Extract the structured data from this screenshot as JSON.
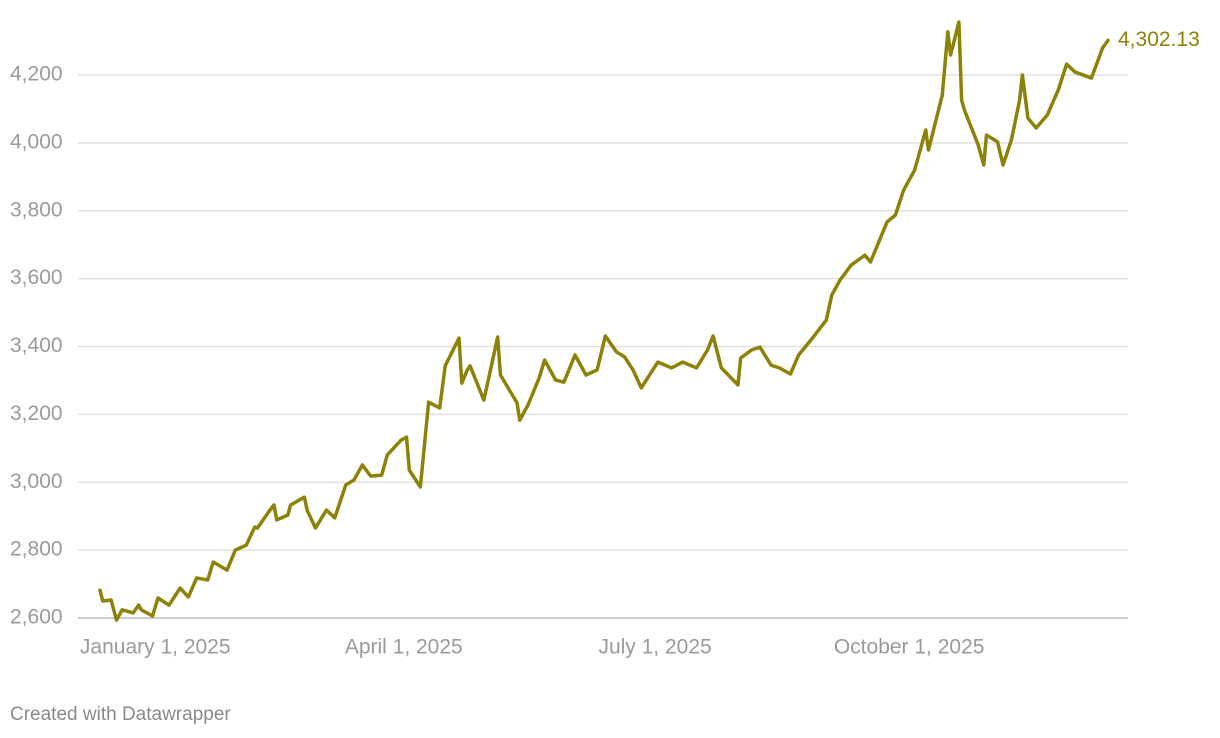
{
  "chart_data": {
    "type": "line",
    "x": [
      "2024-12-12",
      "2024-12-13",
      "2024-12-16",
      "2024-12-18",
      "2024-12-20",
      "2024-12-24",
      "2024-12-26",
      "2024-12-27",
      "2024-12-31",
      "2025-01-02",
      "2025-01-06",
      "2025-01-10",
      "2025-01-13",
      "2025-01-16",
      "2025-01-20",
      "2025-01-22",
      "2025-01-27",
      "2025-01-30",
      "2025-02-03",
      "2025-02-06",
      "2025-02-07",
      "2025-02-11",
      "2025-02-13",
      "2025-02-14",
      "2025-02-18",
      "2025-02-19",
      "2025-02-24",
      "2025-02-25",
      "2025-02-28",
      "2025-03-04",
      "2025-03-07",
      "2025-03-11",
      "2025-03-14",
      "2025-03-17",
      "2025-03-20",
      "2025-03-24",
      "2025-03-26",
      "2025-03-31",
      "2025-04-02",
      "2025-04-03",
      "2025-04-07",
      "2025-04-10",
      "2025-04-14",
      "2025-04-16",
      "2025-04-21",
      "2025-04-22",
      "2025-04-24",
      "2025-04-25",
      "2025-04-30",
      "2025-05-05",
      "2025-05-06",
      "2025-05-12",
      "2025-05-13",
      "2025-05-16",
      "2025-05-20",
      "2025-05-22",
      "2025-05-26",
      "2025-05-29",
      "2025-06-02",
      "2025-06-06",
      "2025-06-10",
      "2025-06-13",
      "2025-06-17",
      "2025-06-20",
      "2025-06-23",
      "2025-06-26",
      "2025-07-02",
      "2025-07-07",
      "2025-07-11",
      "2025-07-16",
      "2025-07-20",
      "2025-07-22",
      "2025-07-25",
      "2025-07-31",
      "2025-08-01",
      "2025-08-05",
      "2025-08-08",
      "2025-08-12",
      "2025-08-15",
      "2025-08-19",
      "2025-08-22",
      "2025-08-27",
      "2025-09-01",
      "2025-09-03",
      "2025-09-06",
      "2025-09-10",
      "2025-09-15",
      "2025-09-17",
      "2025-09-23",
      "2025-09-26",
      "2025-09-29",
      "2025-10-03",
      "2025-10-07",
      "2025-10-08",
      "2025-10-13",
      "2025-10-15",
      "2025-10-16",
      "2025-10-19",
      "2025-10-20",
      "2025-10-21",
      "2025-10-26",
      "2025-10-28",
      "2025-10-29",
      "2025-11-02",
      "2025-11-04",
      "2025-11-07",
      "2025-11-10",
      "2025-11-11",
      "2025-11-13",
      "2025-11-16",
      "2025-11-20",
      "2025-11-24",
      "2025-11-27",
      "2025-11-30",
      "2025-12-06",
      "2025-12-10",
      "2025-12-12"
    ],
    "series": [
      {
        "color": "#8d8208",
        "values": [
          2682,
          2650,
          2653,
          2594,
          2624,
          2615,
          2638,
          2624,
          2606,
          2659,
          2638,
          2688,
          2662,
          2718,
          2712,
          2765,
          2741,
          2800,
          2815,
          2868,
          2865,
          2912,
          2933,
          2889,
          2903,
          2933,
          2956,
          2918,
          2865,
          2918,
          2895,
          2992,
          3007,
          3051,
          3018,
          3021,
          3080,
          3124,
          3133,
          3036,
          2986,
          3236,
          3219,
          3343,
          3425,
          3292,
          3331,
          3343,
          3242,
          3428,
          3316,
          3234,
          3183,
          3228,
          3307,
          3360,
          3301,
          3295,
          3375,
          3316,
          3331,
          3431,
          3384,
          3369,
          3331,
          3278,
          3354,
          3337,
          3354,
          3337,
          3390,
          3431,
          3337,
          3287,
          3366,
          3390,
          3398,
          3345,
          3337,
          3319,
          3375,
          3425,
          3478,
          3552,
          3596,
          3640,
          3669,
          3649,
          3767,
          3787,
          3861,
          3920,
          4038,
          3979,
          4141,
          4327,
          4259,
          4356,
          4126,
          4097,
          3994,
          3935,
          4023,
          4003,
          3935,
          4008,
          4126,
          4200,
          4073,
          4044,
          4082,
          4156,
          4232,
          4209,
          4191,
          4279,
          4302.13
        ],
        "value_labels": [
          null,
          null,
          null,
          null,
          null,
          null,
          null,
          null,
          null,
          null,
          null,
          null,
          null,
          null,
          null,
          null,
          null,
          null,
          null,
          null,
          null,
          null,
          null,
          null,
          null,
          null,
          null,
          null,
          null,
          null,
          null,
          null,
          null,
          null,
          null,
          null,
          null,
          null,
          null,
          null,
          null,
          null,
          null,
          null,
          null,
          null,
          null,
          null,
          null,
          null,
          null,
          null,
          null,
          null,
          null,
          null,
          null,
          null,
          null,
          null,
          null,
          null,
          null,
          null,
          null,
          null,
          null,
          null,
          null,
          null,
          null,
          null,
          null,
          null,
          null,
          null,
          null,
          null,
          null,
          null,
          null,
          null,
          null,
          null,
          null,
          null,
          null,
          null,
          null,
          null,
          null,
          null,
          null,
          null,
          null,
          null,
          null,
          null,
          null,
          null,
          null,
          null,
          null,
          null,
          null,
          null,
          null,
          null,
          null,
          null,
          null,
          null,
          null,
          null,
          null,
          null,
          "4,302.13"
        ]
      }
    ],
    "xlim": [
      "2024-12-12",
      "2025-12-12"
    ],
    "xticks": [
      {
        "value": "2025-01-01",
        "label": "January 1, 2025"
      },
      {
        "value": "2025-04-01",
        "label": "April 1, 2025"
      },
      {
        "value": "2025-07-01",
        "label": "July 1, 2025"
      },
      {
        "value": "2025-10-01",
        "label": "October 1, 2025"
      }
    ],
    "ylim": [
      2600,
      4360
    ],
    "yticks": [
      {
        "value": 2600,
        "label": "2,600"
      },
      {
        "value": 2800,
        "label": "2,800"
      },
      {
        "value": 3000,
        "label": "3,000"
      },
      {
        "value": 3200,
        "label": "3,200"
      },
      {
        "value": 3400,
        "label": "3,400"
      },
      {
        "value": 3600,
        "label": "3,600"
      },
      {
        "value": 3800,
        "label": "3,800"
      },
      {
        "value": 4000,
        "label": "4,000"
      },
      {
        "value": 4200,
        "label": "4,200"
      }
    ],
    "grid": true,
    "footer": "Created with Datawrapper"
  }
}
